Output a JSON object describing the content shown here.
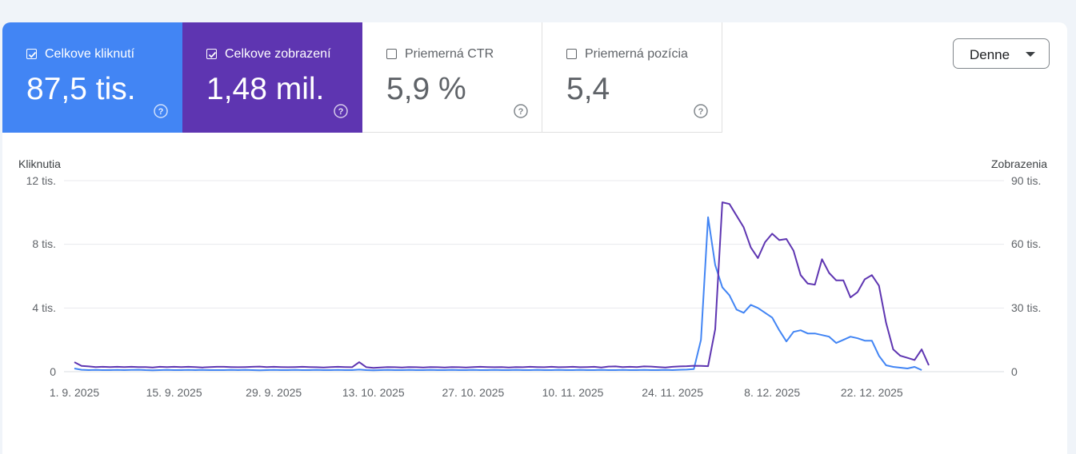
{
  "metrics": [
    {
      "label": "Celkove kliknutí",
      "value": "87,5 tis.",
      "checked": true,
      "color": "#4285f4"
    },
    {
      "label": "Celkove zobrazení",
      "value": "1,48 mil.",
      "checked": true,
      "color": "#5e35b1"
    },
    {
      "label": "Priemerná CTR",
      "value": "5,9 %",
      "checked": false,
      "color": "#ffffff"
    },
    {
      "label": "Priemerná pozícia",
      "value": "5,4",
      "checked": false,
      "color": "#ffffff"
    }
  ],
  "period_selector": {
    "label": "Denne"
  },
  "chart_data": {
    "type": "line",
    "left_axis": {
      "title": "Kliknutia",
      "ticks": [
        "0",
        "4 tis.",
        "8 tis.",
        "12 tis."
      ],
      "range": [
        0,
        12000
      ]
    },
    "right_axis": {
      "title": "Zobrazenia",
      "ticks": [
        "0",
        "30 tis.",
        "60 tis.",
        "90 tis."
      ],
      "range": [
        0,
        90000
      ]
    },
    "x_ticks": [
      "1. 9. 2025",
      "15. 9. 2025",
      "29. 9. 2025",
      "13. 10. 2025",
      "27. 10. 2025",
      "10. 11. 2025",
      "24. 11. 2025",
      "8. 12. 2025",
      "22. 12. 2025"
    ],
    "x_tick_index": [
      0,
      14,
      28,
      42,
      56,
      70,
      84,
      98,
      112
    ],
    "grid": true,
    "series": [
      {
        "name": "Celkove kliknutí",
        "axis": "left",
        "color": "#4285f4",
        "values": [
          200,
          120,
          100,
          110,
          100,
          100,
          110,
          100,
          110,
          120,
          100,
          90,
          100,
          110,
          100,
          100,
          110,
          100,
          110,
          100,
          100,
          100,
          110,
          100,
          110,
          100,
          90,
          100,
          110,
          100,
          100,
          110,
          100,
          100,
          110,
          100,
          100,
          110,
          100,
          100,
          130,
          100,
          90,
          100,
          110,
          100,
          100,
          110,
          100,
          100,
          110,
          100,
          100,
          110,
          100,
          100,
          110,
          100,
          100,
          110,
          100,
          100,
          110,
          100,
          100,
          110,
          100,
          100,
          110,
          100,
          100,
          110,
          100,
          100,
          110,
          100,
          100,
          110,
          100,
          100,
          110,
          100,
          100,
          110,
          100,
          120,
          130,
          160,
          2000,
          9700,
          6700,
          5300,
          4800,
          3900,
          3700,
          4200,
          4000,
          3700,
          3400,
          2600,
          1900,
          2500,
          2600,
          2400,
          2400,
          2300,
          2200,
          1800,
          2000,
          2200,
          2100,
          1950,
          1950,
          1000,
          400,
          300,
          250,
          200,
          300,
          100
        ]
      },
      {
        "name": "Celkove zobrazení",
        "axis": "right",
        "color": "#5e35b1",
        "values": [
          4500,
          2700,
          2500,
          2200,
          2300,
          2200,
          2300,
          2200,
          2300,
          2200,
          2200,
          2000,
          2300,
          2200,
          2300,
          2200,
          2300,
          2200,
          2000,
          2200,
          2300,
          2300,
          2200,
          2100,
          2200,
          2300,
          2400,
          2200,
          2300,
          2200,
          2100,
          2200,
          2300,
          2200,
          2100,
          2000,
          2200,
          2300,
          2200,
          2100,
          4500,
          2100,
          1800,
          2000,
          2200,
          2100,
          2000,
          2200,
          2100,
          2000,
          2200,
          2100,
          2000,
          2200,
          2100,
          2000,
          2200,
          2300,
          2200,
          2100,
          2200,
          2000,
          2200,
          2100,
          2300,
          2200,
          2100,
          2300,
          2100,
          2200,
          2300,
          2100,
          2200,
          2300,
          2000,
          2400,
          2500,
          2200,
          2300,
          2200,
          2500,
          2400,
          2200,
          2000,
          2300,
          2500,
          2600,
          2800,
          2700,
          2600,
          20000,
          79800,
          79000,
          73500,
          68000,
          58500,
          53500,
          61000,
          65000,
          62000,
          62500,
          57000,
          45500,
          41500,
          41000,
          53000,
          46500,
          43000,
          43000,
          35000,
          37500,
          43500,
          45500,
          40500,
          23000,
          10500,
          7500,
          6500,
          5500,
          10500,
          3000
        ]
      }
    ]
  }
}
